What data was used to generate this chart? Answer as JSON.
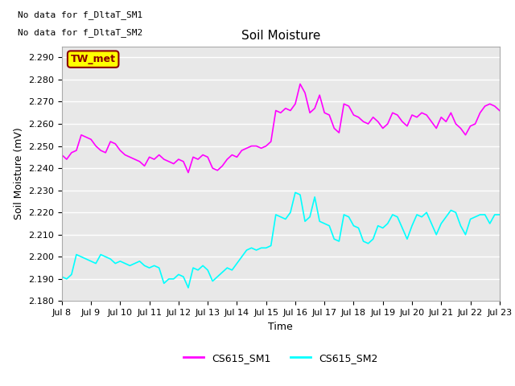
{
  "title": "Soil Moisture",
  "xlabel": "Time",
  "ylabel": "Soil Moisture (mV)",
  "ylim": [
    2.18,
    2.295
  ],
  "yticks": [
    2.18,
    2.19,
    2.2,
    2.21,
    2.22,
    2.23,
    2.24,
    2.25,
    2.26,
    2.27,
    2.28,
    2.29
  ],
  "xtick_labels": [
    "Jul 8",
    "Jul 9",
    "Jul 10",
    "Jul 11",
    "Jul 12",
    "Jul 13",
    "Jul 14",
    "Jul 15",
    "Jul 16",
    "Jul 17",
    "Jul 18",
    "Jul 19",
    "Jul 20",
    "Jul 21",
    "Jul 22",
    "Jul 23"
  ],
  "color_sm1": "#FF00FF",
  "color_sm2": "#00FFFF",
  "legend_label_sm1": "CS615_SM1",
  "legend_label_sm2": "CS615_SM2",
  "annotation_text": "TW_met",
  "no_data_text1": "No data for f_DltaT_SM1",
  "no_data_text2": "No data for f_DltaT_SM2",
  "bg_color": "#E8E8E8",
  "fig_bg_color": "#FFFFFF",
  "grid_color": "#FFFFFF",
  "sm1_data": [
    2.246,
    2.244,
    2.247,
    2.248,
    2.255,
    2.254,
    2.253,
    2.25,
    2.248,
    2.247,
    2.252,
    2.251,
    2.248,
    2.246,
    2.245,
    2.244,
    2.243,
    2.241,
    2.245,
    2.244,
    2.246,
    2.244,
    2.243,
    2.242,
    2.244,
    2.243,
    2.238,
    2.245,
    2.244,
    2.246,
    2.245,
    2.24,
    2.239,
    2.241,
    2.244,
    2.246,
    2.245,
    2.248,
    2.249,
    2.25,
    2.25,
    2.249,
    2.25,
    2.252,
    2.266,
    2.265,
    2.267,
    2.266,
    2.269,
    2.278,
    2.274,
    2.265,
    2.267,
    2.273,
    2.265,
    2.264,
    2.258,
    2.256,
    2.269,
    2.268,
    2.264,
    2.263,
    2.261,
    2.26,
    2.263,
    2.261,
    2.258,
    2.26,
    2.265,
    2.264,
    2.261,
    2.259,
    2.264,
    2.263,
    2.265,
    2.264,
    2.261,
    2.258,
    2.263,
    2.261,
    2.265,
    2.26,
    2.258,
    2.255,
    2.259,
    2.26,
    2.265,
    2.268,
    2.269,
    2.268,
    2.266
  ],
  "sm2_data": [
    2.191,
    2.19,
    2.192,
    2.201,
    2.2,
    2.199,
    2.198,
    2.197,
    2.201,
    2.2,
    2.199,
    2.197,
    2.198,
    2.197,
    2.196,
    2.197,
    2.198,
    2.196,
    2.195,
    2.196,
    2.195,
    2.188,
    2.19,
    2.19,
    2.192,
    2.191,
    2.186,
    2.195,
    2.194,
    2.196,
    2.194,
    2.189,
    2.191,
    2.193,
    2.195,
    2.194,
    2.197,
    2.2,
    2.203,
    2.204,
    2.203,
    2.204,
    2.204,
    2.205,
    2.219,
    2.218,
    2.217,
    2.22,
    2.229,
    2.228,
    2.216,
    2.218,
    2.227,
    2.216,
    2.215,
    2.214,
    2.208,
    2.207,
    2.219,
    2.218,
    2.214,
    2.213,
    2.207,
    2.206,
    2.208,
    2.214,
    2.213,
    2.215,
    2.219,
    2.218,
    2.213,
    2.208,
    2.214,
    2.219,
    2.218,
    2.22,
    2.215,
    2.21,
    2.215,
    2.218,
    2.221,
    2.22,
    2.214,
    2.21,
    2.217,
    2.218,
    2.219,
    2.219,
    2.215,
    2.219,
    2.219
  ]
}
